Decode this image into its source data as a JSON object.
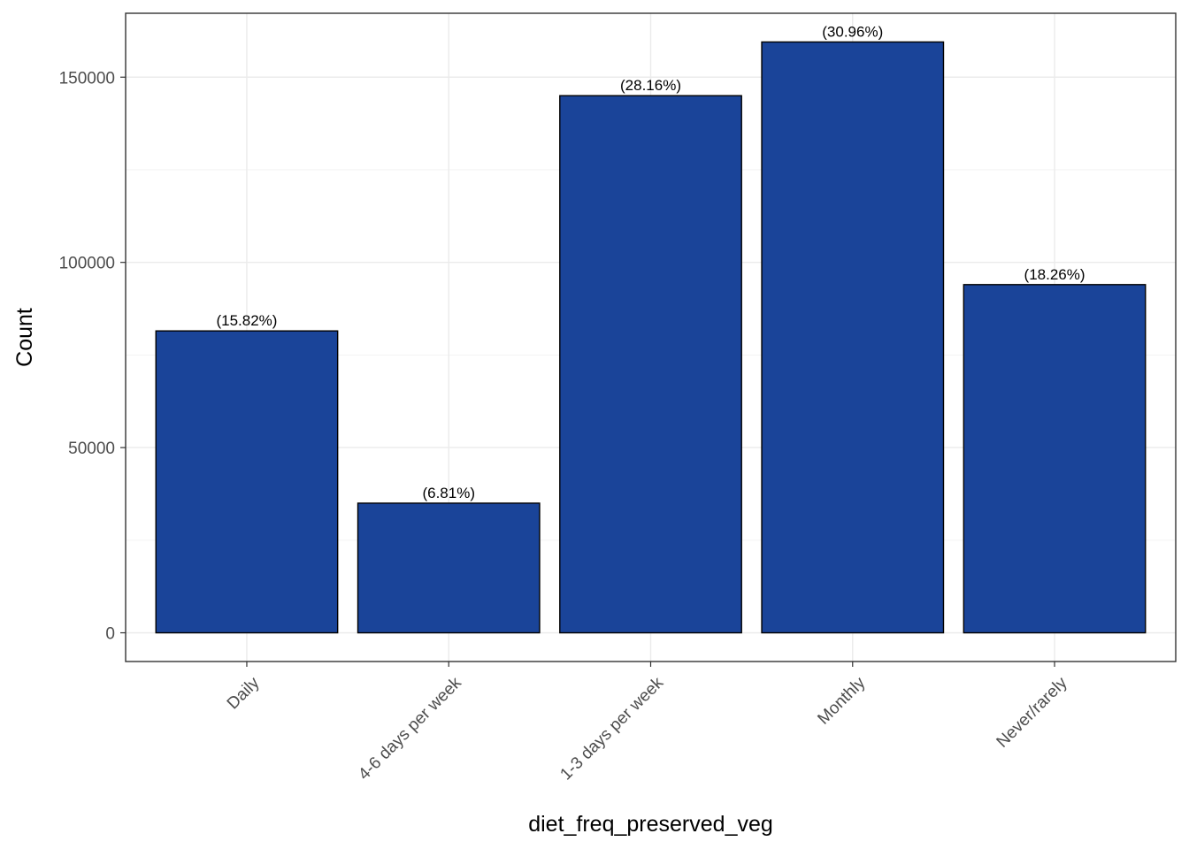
{
  "chart_data": {
    "type": "bar",
    "categories": [
      "Daily",
      "4-6 days per week",
      "1-3 days per week",
      "Monthly",
      "Never/rarely"
    ],
    "values": [
      81500,
      35000,
      145000,
      159500,
      94000
    ],
    "data_labels": [
      "(15.82%)",
      "(6.81%)",
      "(28.16%)",
      "(30.96%)",
      "(18.26%)"
    ],
    "xlabel": "diet_freq_preserved_veg",
    "ylabel": "Count",
    "ylim": [
      -7750,
      167250
    ],
    "yticks": [
      0,
      50000,
      100000,
      150000
    ],
    "ytick_labels": [
      "0",
      "50000",
      "100000",
      "150000"
    ],
    "grid": true,
    "bar_color": "#1a4499",
    "bar_border_color": "#000000"
  }
}
